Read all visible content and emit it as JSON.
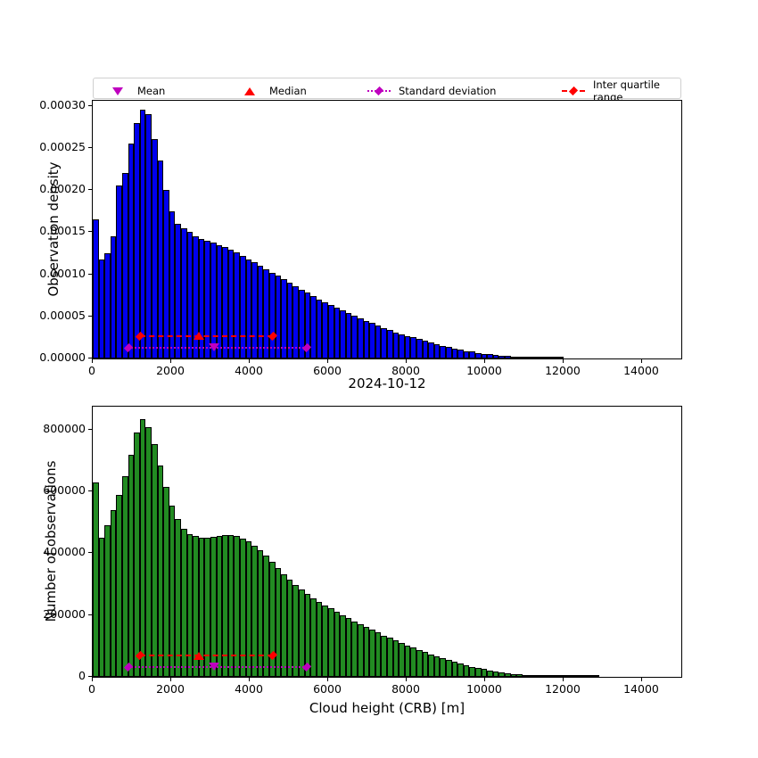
{
  "figure": {
    "title": "2024-10-12",
    "x_label": "Cloud height (CRB) [m]",
    "x_max": 15000,
    "x_ticks": [
      0,
      2000,
      4000,
      6000,
      8000,
      10000,
      12000,
      14000
    ]
  },
  "colors": {
    "bar_blue": "#0000ee",
    "bar_green": "#228b22",
    "edge": "#000000",
    "mean": "#bf00bf",
    "median": "#ff0000",
    "std": "#bf00bf",
    "iqr": "#ff0000"
  },
  "legend": {
    "items": [
      {
        "label": "Mean",
        "marker": "triangle-down",
        "color": "#bf00bf",
        "line": "none"
      },
      {
        "label": "Median",
        "marker": "triangle-up",
        "color": "#ff0000",
        "line": "none"
      },
      {
        "label": "Standard deviation",
        "marker": "diamond",
        "color": "#bf00bf",
        "line": "dotted"
      },
      {
        "label": "Inter quartile range",
        "marker": "diamond",
        "color": "#ff0000",
        "line": "dashed"
      }
    ]
  },
  "chart_data": [
    {
      "type": "bar",
      "name": "observation-density-histogram",
      "ylabel": "Observation density",
      "bar_color": "#0000ee",
      "bin_width": 150,
      "xlim": [
        0,
        15000
      ],
      "ylim": [
        0,
        0.000306
      ],
      "value_scale": 1e-05,
      "yticks": [
        {
          "v": 0,
          "label": "0.00000"
        },
        {
          "v": 5e-05,
          "label": "0.00005"
        },
        {
          "v": 0.0001,
          "label": "0.00010"
        },
        {
          "v": 0.00015,
          "label": "0.00015"
        },
        {
          "v": 0.0002,
          "label": "0.00020"
        },
        {
          "v": 0.00025,
          "label": "0.00025"
        },
        {
          "v": 0.0003,
          "label": "0.00030"
        }
      ],
      "values": [
        16.5,
        11.8,
        12.5,
        14.5,
        20.5,
        22.0,
        25.5,
        28.0,
        29.5,
        29.0,
        26.0,
        23.5,
        20.0,
        17.5,
        16.0,
        15.5,
        15.0,
        14.5,
        14.2,
        14.0,
        13.8,
        13.5,
        13.2,
        12.9,
        12.6,
        12.2,
        11.8,
        11.4,
        11.0,
        10.6,
        10.2,
        9.8,
        9.4,
        9.0,
        8.6,
        8.2,
        7.8,
        7.4,
        7.0,
        6.7,
        6.4,
        6.0,
        5.7,
        5.4,
        5.1,
        4.8,
        4.5,
        4.2,
        3.9,
        3.6,
        3.4,
        3.1,
        2.9,
        2.7,
        2.5,
        2.3,
        2.1,
        1.9,
        1.7,
        1.5,
        1.35,
        1.2,
        1.05,
        0.9,
        0.8,
        0.68,
        0.58,
        0.48,
        0.4,
        0.33,
        0.27,
        0.22,
        0.17,
        0.13,
        0.1,
        0.07,
        0.05,
        0.03,
        0.02,
        0.01,
        0,
        0,
        0,
        0,
        0,
        0,
        0,
        0,
        0,
        0,
        0,
        0,
        0,
        0,
        0,
        0,
        0,
        0,
        0,
        0
      ],
      "stats": {
        "mean": 3100,
        "median": 2700,
        "std_range": [
          900,
          5450
        ],
        "iqr": [
          1200,
          4600
        ],
        "iqr_line_y": 2.7e-05,
        "std_line_y": 1.3e-05
      }
    },
    {
      "type": "bar",
      "name": "observation-count-histogram",
      "ylabel": "Number of observations",
      "bar_color": "#228b22",
      "bin_width": 150,
      "xlim": [
        0,
        15000
      ],
      "ylim": [
        0,
        875000
      ],
      "value_scale": 1,
      "yticks": [
        {
          "v": 0,
          "label": "0"
        },
        {
          "v": 200000,
          "label": "200000"
        },
        {
          "v": 400000,
          "label": "400000"
        },
        {
          "v": 600000,
          "label": "600000"
        },
        {
          "v": 800000,
          "label": "800000"
        }
      ],
      "values": [
        630000,
        450000,
        490000,
        540000,
        590000,
        650000,
        720000,
        790000,
        835000,
        810000,
        755000,
        685000,
        615000,
        555000,
        510000,
        480000,
        462000,
        455000,
        450000,
        450000,
        452000,
        455000,
        458000,
        460000,
        455000,
        448000,
        438000,
        425000,
        410000,
        392000,
        372000,
        352000,
        333000,
        315000,
        298000,
        282000,
        268000,
        255000,
        243000,
        232000,
        221000,
        210000,
        200000,
        190000,
        180000,
        170000,
        161000,
        152000,
        143000,
        134000,
        126000,
        118000,
        110000,
        102000,
        94000,
        87000,
        80000,
        73000,
        66000,
        60000,
        54000,
        48000,
        43000,
        38000,
        33000,
        29000,
        25000,
        21000,
        18000,
        15000,
        12500,
        10000,
        8000,
        6500,
        5000,
        4000,
        3000,
        2300,
        1700,
        1200,
        900,
        600,
        400,
        250,
        150,
        80,
        0,
        0,
        0,
        0,
        0,
        0,
        0,
        0,
        0,
        0,
        0,
        0,
        0,
        0
      ],
      "stats": {
        "mean": 3100,
        "median": 2700,
        "std_range": [
          900,
          5450
        ],
        "iqr": [
          1200,
          4600
        ],
        "iqr_line_y": 68000,
        "std_line_y": 33000
      }
    }
  ]
}
